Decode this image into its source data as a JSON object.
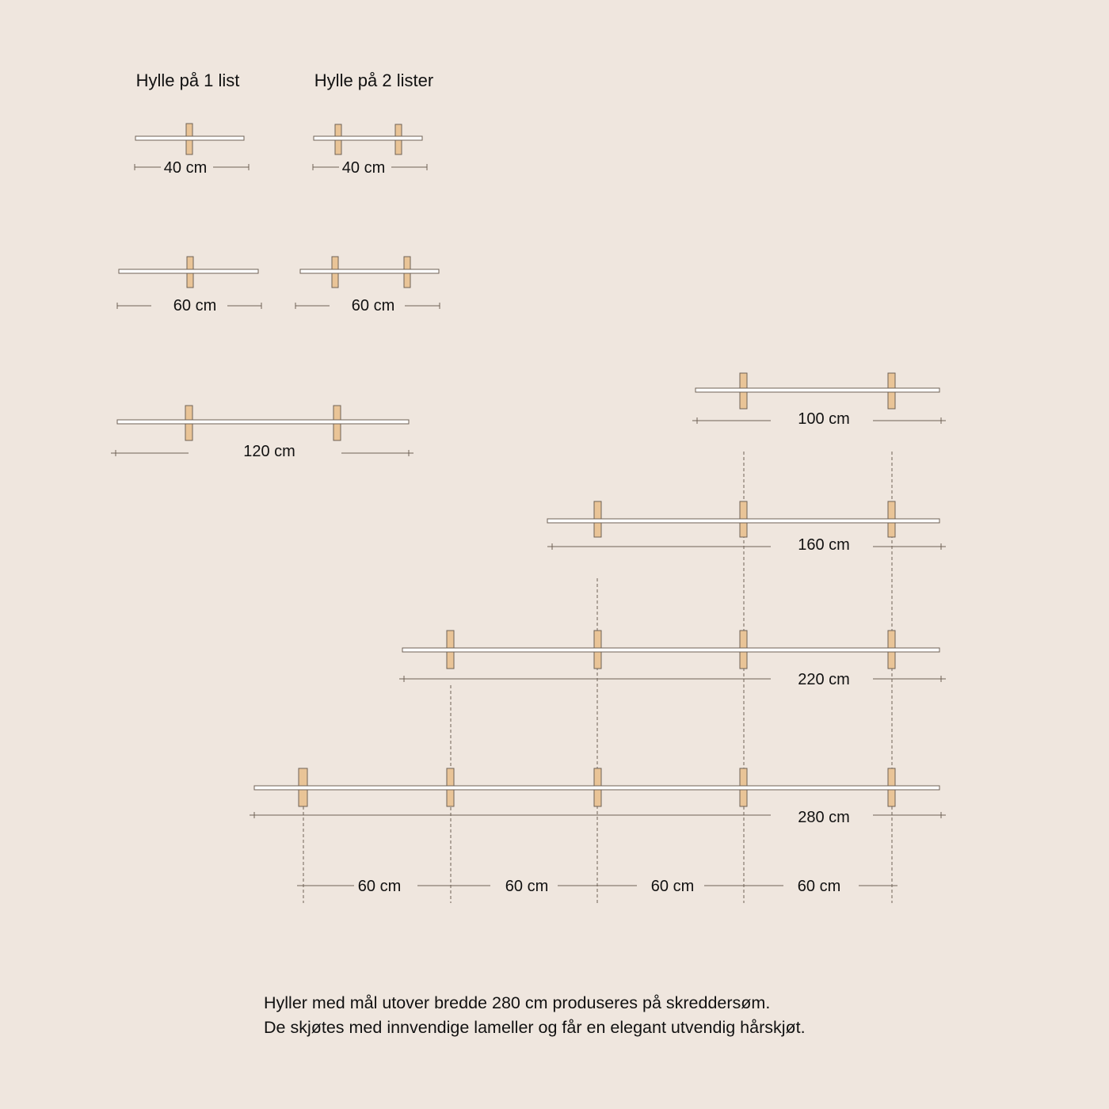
{
  "titles": {
    "one_rail": "Hylle på 1 list",
    "two_rails": "Hylle på 2 lister"
  },
  "colors": {
    "background": "#efe6de",
    "bracket": "#e9c497",
    "shelf": "#ffffff",
    "stroke": "#6f6256"
  },
  "shelves": [
    {
      "label": "40 cm",
      "rails": 1
    },
    {
      "label": "40 cm",
      "rails": 2
    },
    {
      "label": "60 cm",
      "rails": 1
    },
    {
      "label": "60 cm",
      "rails": 2
    },
    {
      "label": "120 cm",
      "rails": 2
    },
    {
      "label": "100 cm",
      "rails": 2
    },
    {
      "label": "160 cm",
      "rails": 3
    },
    {
      "label": "220 cm",
      "rails": 4
    },
    {
      "label": "280 cm",
      "rails": 5
    }
  ],
  "spacing_labels": [
    "60 cm",
    "60 cm",
    "60 cm",
    "60 cm"
  ],
  "footer": {
    "line1": "Hyller med mål utover bredde 280 cm produseres på skreddersøm.",
    "line2": "De skjøtes med innvendige lameller og får en elegant utvendig hårskjøt."
  }
}
